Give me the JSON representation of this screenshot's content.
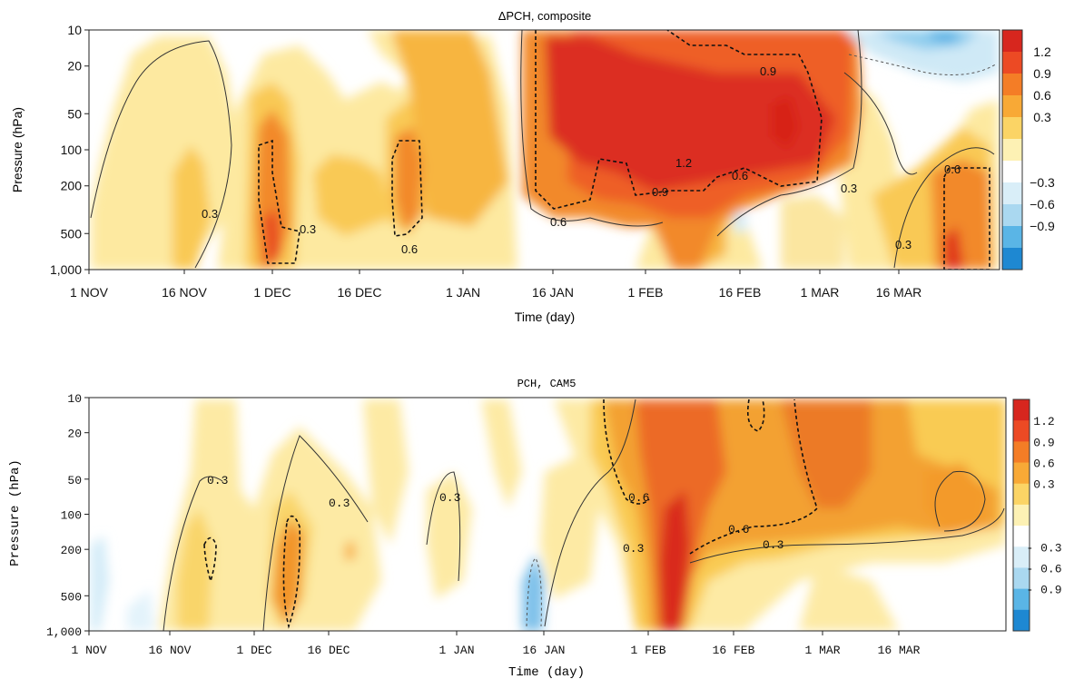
{
  "chart_data": [
    {
      "type": "heatmap",
      "title": "ΔPCH, composite",
      "xlabel": "Time (day)",
      "ylabel": "Pressure (hPa)",
      "x_ticks": [
        "1 NOV",
        "16 NOV",
        "1 DEC",
        "16 DEC",
        "1 JAN",
        "16 JAN",
        "1 FEB",
        "16 FEB",
        "1 MAR",
        "16 MAR"
      ],
      "y_ticks": [
        "10",
        "20",
        "50",
        "100",
        "200",
        "500",
        "1,000"
      ],
      "y_values": [
        10,
        20,
        50,
        100,
        200,
        500,
        1000
      ],
      "y_scale": "log",
      "colorbar_ticks": [
        "1.2",
        "0.9",
        "0.6",
        "0.3",
        "−0.3",
        "−0.6",
        "−0.9"
      ],
      "colorbar_colors": [
        "#d7261e",
        "#ec4a24",
        "#f47d26",
        "#f8a936",
        "#fbd465",
        "#fdf1b4",
        "#ffffff",
        "#d9eef8",
        "#aad8f0",
        "#5ab5e6",
        "#1e88d2"
      ],
      "contour_labels": [
        "0.3",
        "0.3",
        "0.6",
        "0.6",
        "0.9",
        "1.2",
        "0.9",
        "0.6",
        "0.3",
        "0.3",
        "0.6"
      ]
    },
    {
      "type": "heatmap",
      "title": "PCH, CAM5",
      "xlabel": "Time (day)",
      "ylabel": "Pressure (hPa)",
      "x_ticks": [
        "1 NOV",
        "16 NOV",
        "1 DEC",
        "16 DEC",
        "1 JAN",
        "16 JAN",
        "1 FEB",
        "16 FEB",
        "1 MAR",
        "16 MAR"
      ],
      "y_ticks": [
        "10",
        "20",
        "50",
        "100",
        "200",
        "500",
        "1,000"
      ],
      "y_values": [
        10,
        20,
        50,
        100,
        200,
        500,
        1000
      ],
      "y_scale": "log",
      "colorbar_ticks": [
        "1.2",
        "0.9",
        "0.6",
        "0.3",
        "- 0.3",
        "- 0.6",
        "- 0.9"
      ],
      "colorbar_colors": [
        "#d7261e",
        "#ec4a24",
        "#f47d26",
        "#f8a936",
        "#fbd465",
        "#fdf1b4",
        "#ffffff",
        "#d9eef8",
        "#aad8f0",
        "#5ab5e6",
        "#1e88d2"
      ],
      "contour_labels": [
        "0.3",
        "0.3",
        "0.3",
        "0.6",
        "0.3",
        "0.6",
        "0.3"
      ]
    }
  ]
}
